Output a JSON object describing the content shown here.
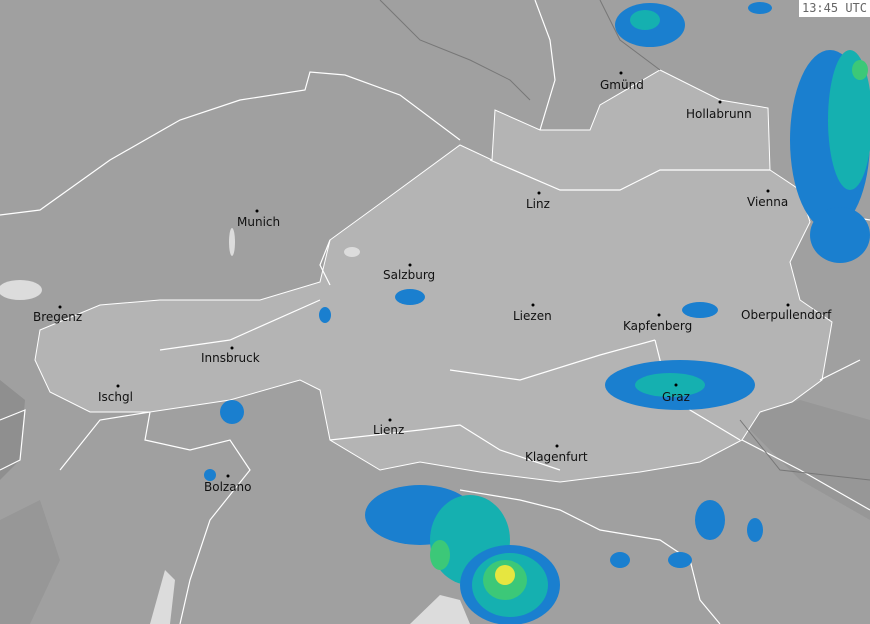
{
  "timestamp": "13:45 UTC",
  "colors": {
    "background": "#a0a0a0",
    "country_highlight": "#b4b4b4",
    "border": "#ffffff",
    "radar_light": "#1a7fcf",
    "radar_medium": "#15b0b0",
    "radar_strong": "#3cc878",
    "radar_heavy": "#e6e640"
  },
  "cities": [
    {
      "name": "Gmünd"
    },
    {
      "name": "Hollabrunn"
    },
    {
      "name": "Linz"
    },
    {
      "name": "Vienna"
    },
    {
      "name": "Munich"
    },
    {
      "name": "Salzburg"
    },
    {
      "name": "Bregenz"
    },
    {
      "name": "Liezen"
    },
    {
      "name": "Kapfenberg"
    },
    {
      "name": "Oberpullendorf"
    },
    {
      "name": "Innsbruck"
    },
    {
      "name": "Ischgl"
    },
    {
      "name": "Graz"
    },
    {
      "name": "Lienz"
    },
    {
      "name": "Klagenfurt"
    },
    {
      "name": "Bolzano"
    }
  ]
}
